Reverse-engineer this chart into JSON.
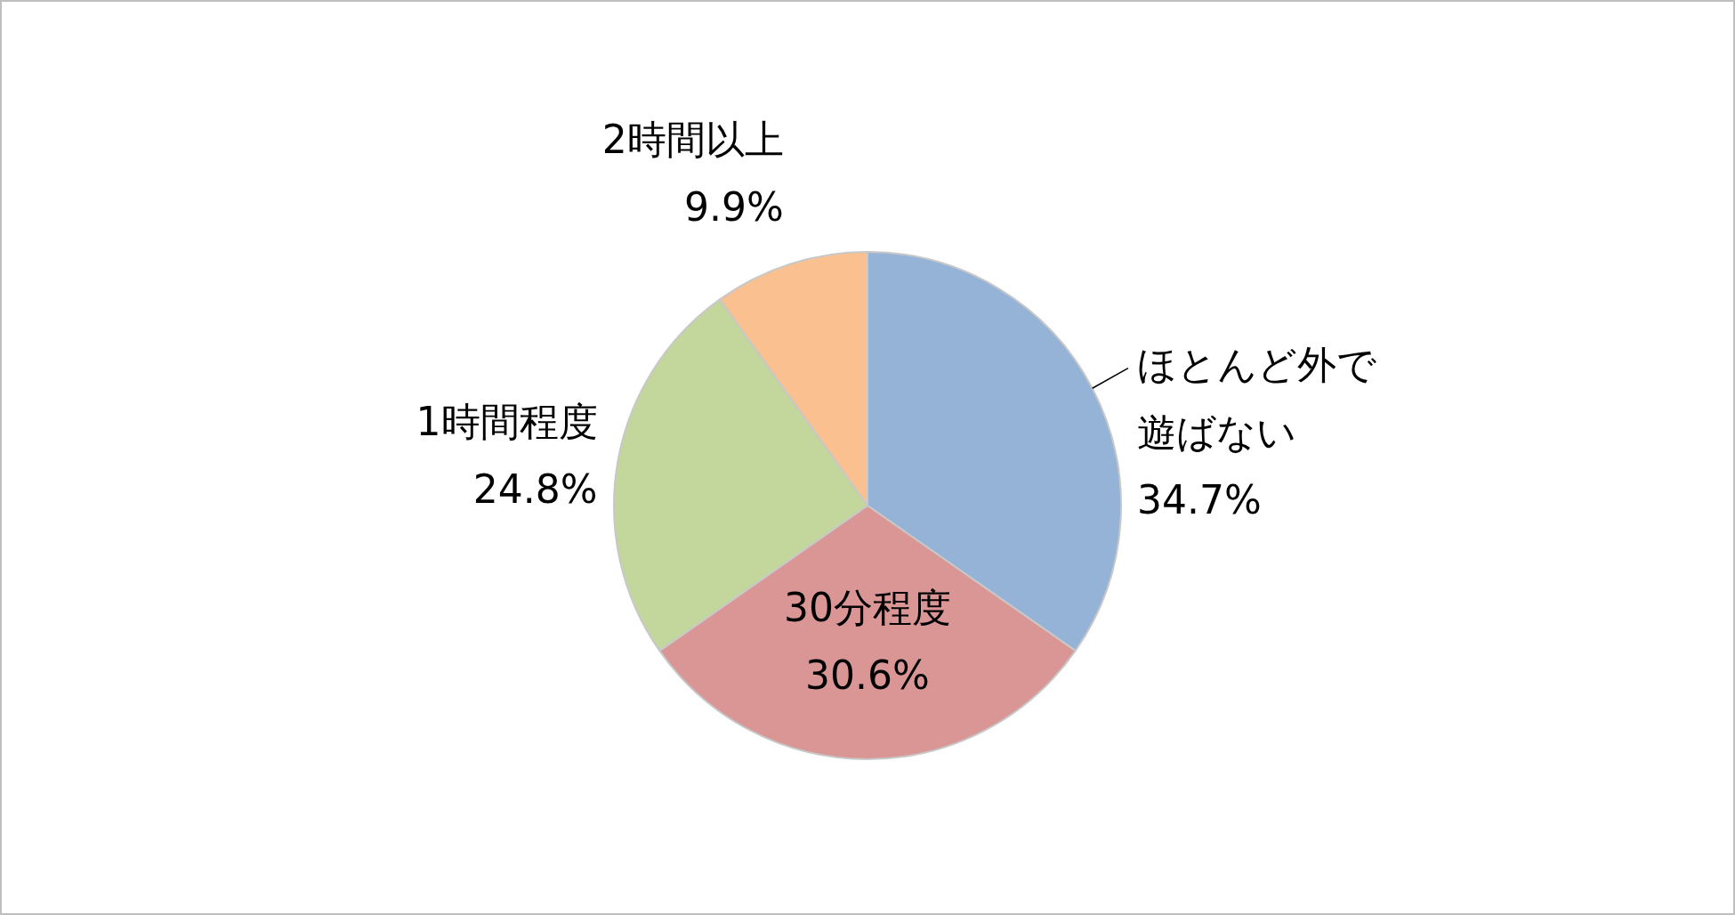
{
  "chart_data": {
    "type": "pie",
    "categories": [
      "ほとんど外で遊ばない",
      "30分程度",
      "1時間程度",
      "2時間以上"
    ],
    "values": [
      34.7,
      30.6,
      24.8,
      9.9
    ],
    "colors": [
      "#95b3d7",
      "#d99694",
      "#c3d69b",
      "#fac090"
    ],
    "value_labels": [
      "34.7%",
      "30.6%",
      "24.8%",
      "9.9%"
    ],
    "legend": false
  }
}
